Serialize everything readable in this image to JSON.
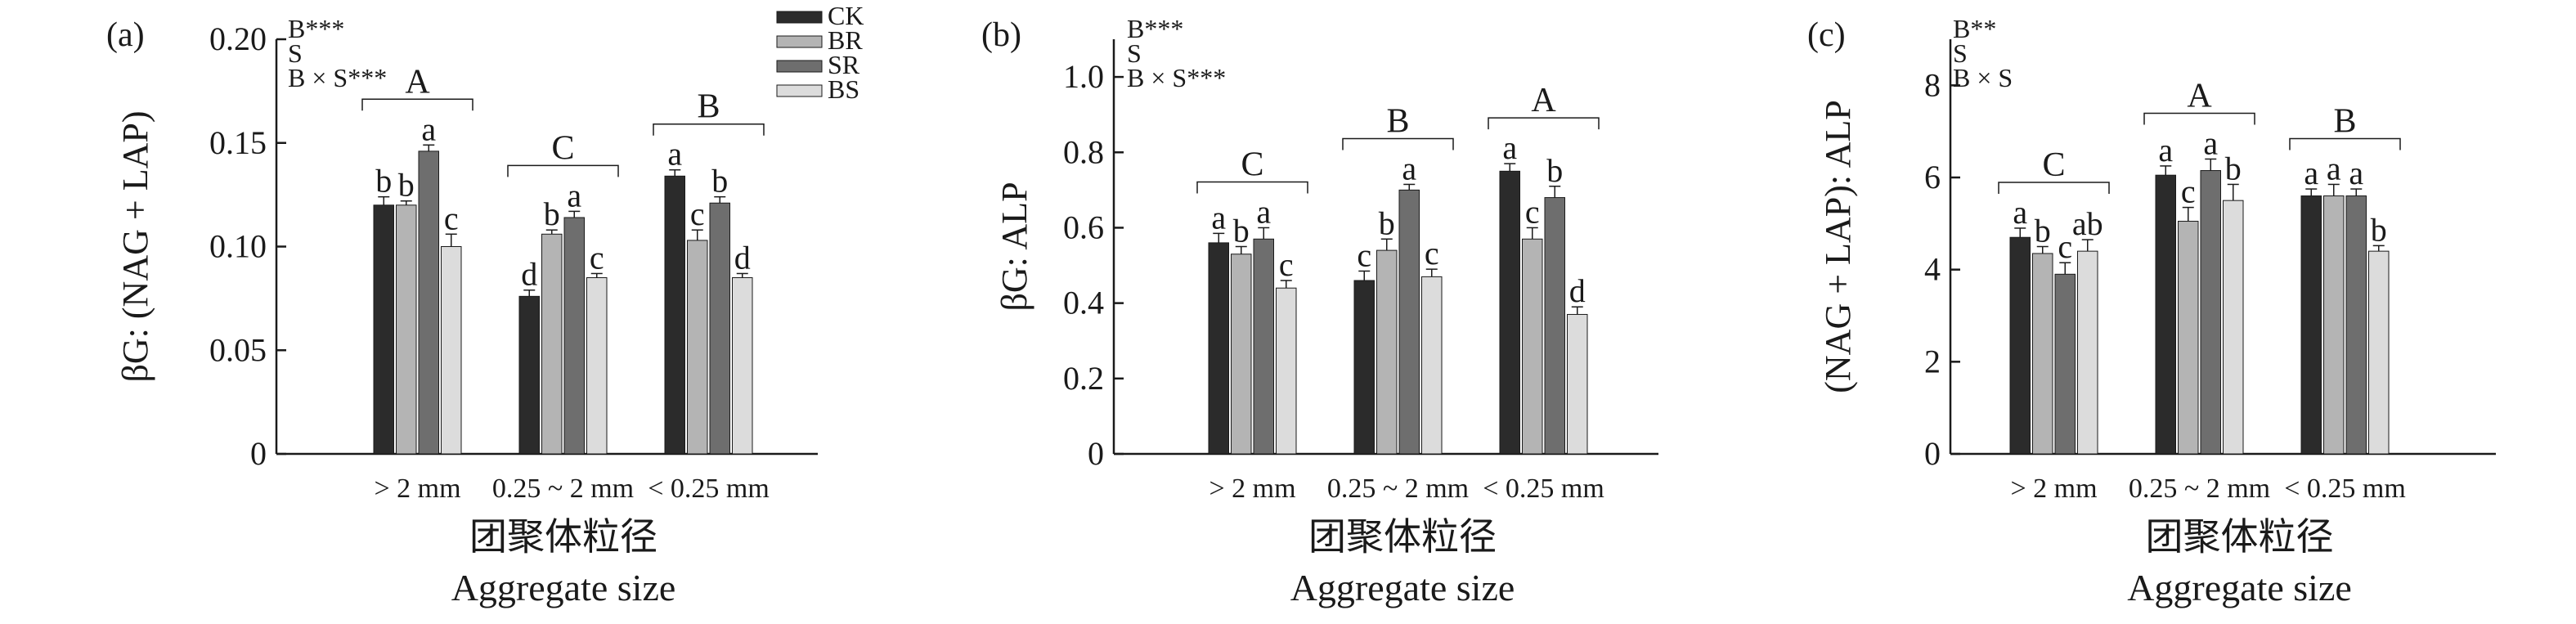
{
  "categories": [
    "> 2 mm",
    "0.25 ~ 2 mm",
    "< 0.25 mm"
  ],
  "xlabel_cn": "团聚体粒径",
  "xlabel_en": "Aggregate size",
  "legend": {
    "items": [
      {
        "label": "CK",
        "color": "#2b2b2b"
      },
      {
        "label": "BR",
        "color": "#b4b4b4"
      },
      {
        "label": "SR",
        "color": "#6e6e6e"
      },
      {
        "label": "BS",
        "color": "#dcdcdc"
      }
    ]
  },
  "chart_data": [
    {
      "type": "bar",
      "panel_label": "(a)",
      "ylabel": "βG: (NAG + LAP)",
      "ylim": [
        0,
        0.2
      ],
      "yticks": [
        "0",
        "0.05",
        "0.10",
        "0.15",
        "0.20"
      ],
      "stats": [
        "B***",
        "S",
        "B × S***"
      ],
      "group_letters": [
        "A",
        "C",
        "B"
      ],
      "series": [
        {
          "name": "CK",
          "values": [
            0.12,
            0.076,
            0.134
          ],
          "errors": [
            0.004,
            0.003,
            0.003
          ],
          "letters": [
            "b",
            "d",
            "a"
          ]
        },
        {
          "name": "BR",
          "values": [
            0.12,
            0.106,
            0.103
          ],
          "errors": [
            0.002,
            0.002,
            0.005
          ],
          "letters": [
            "b",
            "b",
            "c"
          ]
        },
        {
          "name": "SR",
          "values": [
            0.146,
            0.114,
            0.121
          ],
          "errors": [
            0.003,
            0.003,
            0.003
          ],
          "letters": [
            "a",
            "a",
            "b"
          ]
        },
        {
          "name": "BS",
          "values": [
            0.1,
            0.085,
            0.085
          ],
          "errors": [
            0.006,
            0.002,
            0.002
          ],
          "letters": [
            "c",
            "c",
            "d"
          ]
        }
      ]
    },
    {
      "type": "bar",
      "panel_label": "(b)",
      "ylabel": "βG: ALP",
      "ylim": [
        0,
        1.1
      ],
      "yticks": [
        "0",
        "0.2",
        "0.4",
        "0.6",
        "0.8",
        "1.0"
      ],
      "stats": [
        "B***",
        "S",
        "B × S***"
      ],
      "group_letters": [
        "C",
        "B",
        "A"
      ],
      "series": [
        {
          "name": "CK",
          "values": [
            0.56,
            0.46,
            0.75
          ],
          "errors": [
            0.025,
            0.025,
            0.02
          ],
          "letters": [
            "a",
            "c",
            "a"
          ]
        },
        {
          "name": "BR",
          "values": [
            0.53,
            0.54,
            0.57
          ],
          "errors": [
            0.02,
            0.03,
            0.03
          ],
          "letters": [
            "b",
            "b",
            "c"
          ]
        },
        {
          "name": "SR",
          "values": [
            0.57,
            0.7,
            0.68
          ],
          "errors": [
            0.03,
            0.015,
            0.03
          ],
          "letters": [
            "a",
            "a",
            "b"
          ]
        },
        {
          "name": "BS",
          "values": [
            0.44,
            0.47,
            0.37
          ],
          "errors": [
            0.02,
            0.02,
            0.02
          ],
          "letters": [
            "c",
            "c",
            "d"
          ]
        }
      ]
    },
    {
      "type": "bar",
      "panel_label": "(c)",
      "ylabel": "(NAG + LAP): ALP",
      "ylim": [
        0,
        9
      ],
      "yticks": [
        "0",
        "2",
        "4",
        "6",
        "8"
      ],
      "stats": [
        "B**",
        "S",
        "B × S"
      ],
      "group_letters": [
        "C",
        "A",
        "B"
      ],
      "series": [
        {
          "name": "CK",
          "values": [
            4.7,
            6.05,
            5.6
          ],
          "errors": [
            0.2,
            0.2,
            0.15
          ],
          "letters": [
            "a",
            "a",
            "a"
          ]
        },
        {
          "name": "BR",
          "values": [
            4.35,
            5.05,
            5.6
          ],
          "errors": [
            0.15,
            0.3,
            0.25
          ],
          "letters": [
            "b",
            "c",
            "a"
          ]
        },
        {
          "name": "SR",
          "values": [
            3.9,
            6.15,
            5.6
          ],
          "errors": [
            0.25,
            0.25,
            0.15
          ],
          "letters": [
            "c",
            "a",
            "a"
          ]
        },
        {
          "name": "BS",
          "values": [
            4.4,
            5.5,
            4.4
          ],
          "errors": [
            0.25,
            0.35,
            0.12
          ],
          "letters": [
            "ab",
            "b",
            "b"
          ]
        }
      ]
    }
  ]
}
